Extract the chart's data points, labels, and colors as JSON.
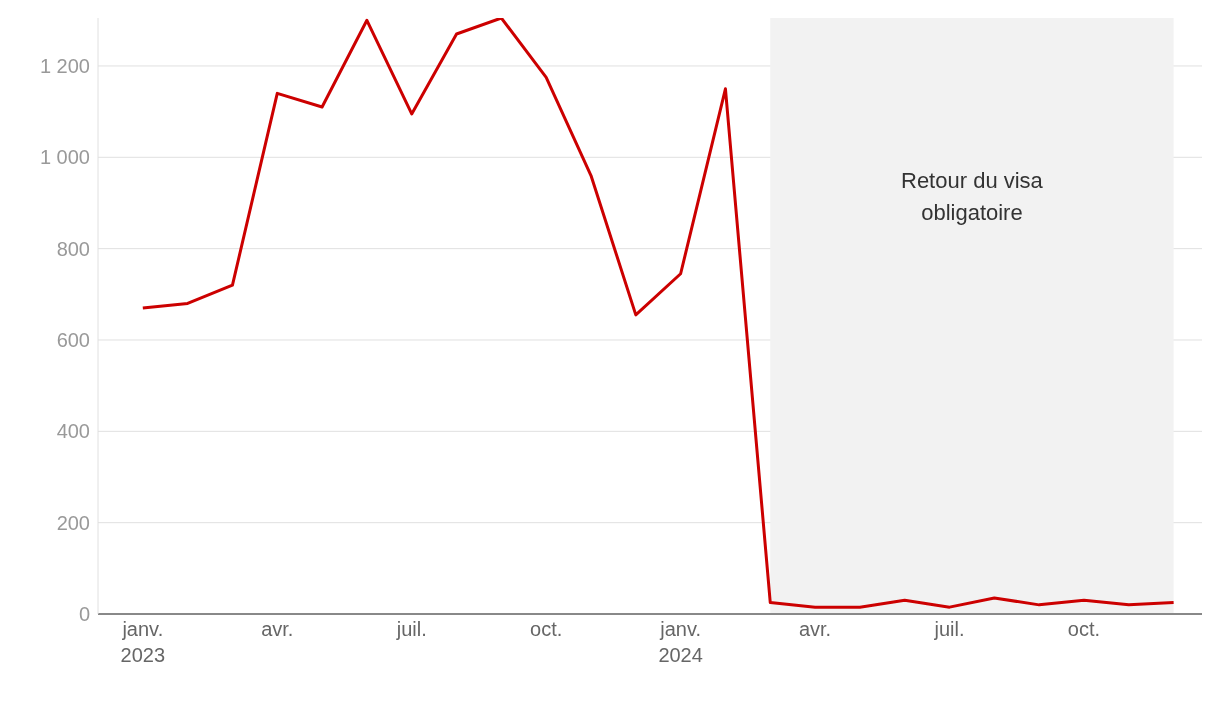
{
  "chart_data": {
    "type": "line",
    "x": [
      "2023-01",
      "2023-02",
      "2023-03",
      "2023-04",
      "2023-05",
      "2023-06",
      "2023-07",
      "2023-08",
      "2023-09",
      "2023-10",
      "2023-11",
      "2023-12",
      "2024-01",
      "2024-02",
      "2024-03",
      "2024-04",
      "2024-05",
      "2024-06",
      "2024-07",
      "2024-08",
      "2024-09",
      "2024-10",
      "2024-11",
      "2024-12"
    ],
    "series": [
      {
        "color": "#cc0000",
        "values": [
          670,
          680,
          720,
          1140,
          1110,
          1300,
          1095,
          1270,
          1305,
          1175,
          960,
          655,
          745,
          1150,
          25,
          15,
          15,
          30,
          15,
          35,
          20,
          30,
          20,
          25
        ]
      }
    ],
    "xlim": [
      "2022-12",
      "2024-12-20"
    ],
    "xticks": [
      {
        "value": "2023-01",
        "label": "janv.\n2023"
      },
      {
        "value": "2023-04",
        "label": "avr."
      },
      {
        "value": "2023-07",
        "label": "juil."
      },
      {
        "value": "2023-10",
        "label": "oct."
      },
      {
        "value": "2024-01",
        "label": "janv.\n2024"
      },
      {
        "value": "2024-04",
        "label": "avr."
      },
      {
        "value": "2024-07",
        "label": "juil."
      },
      {
        "value": "2024-10",
        "label": "oct."
      }
    ],
    "ylim": [
      0,
      1305
    ],
    "yticks": [
      0,
      200,
      400,
      600,
      800,
      {
        "value": 1000,
        "label": "1 000"
      },
      {
        "value": 1200,
        "label": "1 200"
      }
    ],
    "grid": "y",
    "marker": "none",
    "line_style": "solid",
    "legend": false,
    "bands": [
      {
        "axis": "x",
        "from": "2024-03",
        "to": "2024-12",
        "label": "Retour du visa obligatoire",
        "color": "#f2f2f2"
      }
    ]
  }
}
